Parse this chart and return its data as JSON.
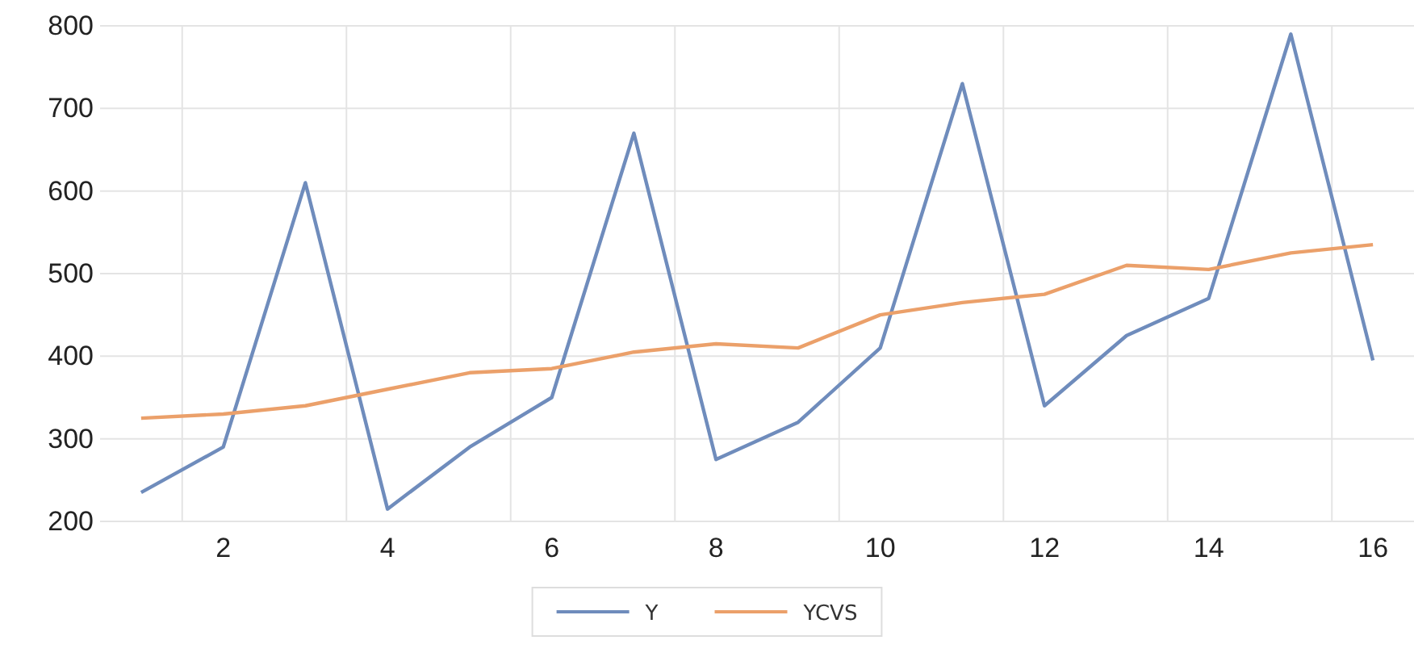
{
  "chart_data": {
    "type": "line",
    "categories": [
      null,
      "2",
      null,
      "4",
      null,
      "6",
      null,
      "8",
      null,
      "10",
      null,
      "12",
      null,
      "14",
      null,
      "16"
    ],
    "series": [
      {
        "name": "Y",
        "color": "#6f8cbc",
        "values": [
          235,
          290,
          610,
          215,
          290,
          350,
          670,
          275,
          320,
          410,
          730,
          340,
          425,
          470,
          790,
          395
        ]
      },
      {
        "name": "YCVS",
        "color": "#eba06a",
        "values": [
          325,
          330,
          340,
          360,
          380,
          385,
          405,
          415,
          410,
          450,
          465,
          475,
          510,
          505,
          525,
          535
        ]
      }
    ],
    "ylim": [
      200,
      800
    ],
    "yticks": [
      200,
      300,
      400,
      500,
      600,
      700,
      800
    ],
    "grid": true,
    "legend": "bottom",
    "marker": "none",
    "line_style": "solid"
  }
}
